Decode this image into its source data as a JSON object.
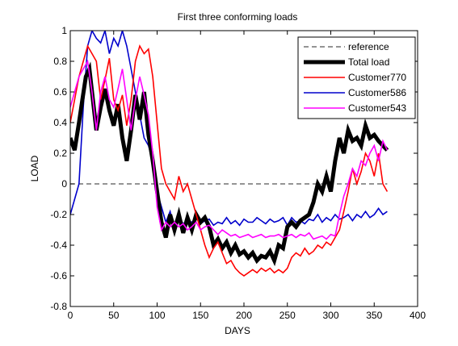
{
  "chart_data": {
    "type": "line",
    "title": "First three conforming loads",
    "xlabel": "DAYS",
    "ylabel": "LOAD",
    "xlim": [
      0,
      400
    ],
    "ylim": [
      -0.8,
      1
    ],
    "xticks": [
      0,
      50,
      100,
      150,
      200,
      250,
      300,
      350,
      400
    ],
    "yticks": [
      -0.8,
      -0.6,
      -0.4,
      -0.2,
      0,
      0.2,
      0.4,
      0.6,
      0.8,
      1
    ],
    "xtick_labels": [
      "0",
      "50",
      "100",
      "150",
      "200",
      "250",
      "300",
      "350",
      "400"
    ],
    "ytick_labels": [
      "-0.8",
      "-0.6",
      "-0.4",
      "-0.2",
      "0",
      "0.2",
      "0.4",
      "0.6",
      "0.8",
      "1"
    ],
    "grid": false,
    "legend_position": "top-right",
    "series": [
      {
        "name": "reference",
        "color": "#555555",
        "style": "dashed",
        "width": 1.2,
        "x": [
          0,
          365
        ],
        "y": [
          0,
          0
        ]
      },
      {
        "name": "Total load",
        "color": "#000000",
        "style": "solid",
        "width": 5,
        "x": [
          0,
          5,
          10,
          14,
          18,
          22,
          26,
          30,
          35,
          40,
          45,
          50,
          55,
          60,
          65,
          70,
          75,
          80,
          85,
          90,
          95,
          100,
          105,
          110,
          115,
          120,
          125,
          130,
          135,
          140,
          145,
          150,
          155,
          160,
          165,
          170,
          175,
          180,
          185,
          190,
          195,
          200,
          205,
          210,
          215,
          220,
          225,
          230,
          235,
          240,
          245,
          250,
          255,
          260,
          265,
          270,
          275,
          280,
          285,
          290,
          295,
          300,
          305,
          310,
          315,
          320,
          325,
          330,
          335,
          340,
          345,
          350,
          355,
          360,
          365
        ],
        "y": [
          0.3,
          0.22,
          0.4,
          0.55,
          0.7,
          0.75,
          0.55,
          0.35,
          0.5,
          0.62,
          0.48,
          0.38,
          0.52,
          0.3,
          0.15,
          0.35,
          0.58,
          0.42,
          0.6,
          0.32,
          0.15,
          -0.05,
          -0.25,
          -0.35,
          -0.2,
          -0.3,
          -0.2,
          -0.32,
          -0.22,
          -0.3,
          -0.2,
          -0.25,
          -0.22,
          -0.28,
          -0.4,
          -0.36,
          -0.42,
          -0.38,
          -0.45,
          -0.4,
          -0.46,
          -0.44,
          -0.48,
          -0.45,
          -0.5,
          -0.47,
          -0.48,
          -0.44,
          -0.5,
          -0.4,
          -0.42,
          -0.28,
          -0.25,
          -0.28,
          -0.24,
          -0.22,
          -0.2,
          -0.12,
          0.0,
          -0.05,
          0.05,
          -0.05,
          0.15,
          0.3,
          0.2,
          0.35,
          0.28,
          0.3,
          0.25,
          0.38,
          0.3,
          0.32,
          0.28,
          0.25,
          0.22
        ]
      },
      {
        "name": "Customer770",
        "color": "#ff0000",
        "style": "solid",
        "width": 1.6,
        "x": [
          0,
          5,
          10,
          15,
          20,
          25,
          30,
          35,
          40,
          45,
          50,
          55,
          60,
          65,
          70,
          75,
          80,
          85,
          90,
          95,
          100,
          105,
          110,
          115,
          120,
          125,
          130,
          135,
          140,
          145,
          150,
          155,
          160,
          165,
          170,
          175,
          180,
          185,
          190,
          195,
          200,
          205,
          210,
          215,
          220,
          225,
          230,
          235,
          240,
          245,
          250,
          255,
          260,
          265,
          270,
          275,
          280,
          285,
          290,
          295,
          300,
          305,
          310,
          315,
          320,
          325,
          330,
          335,
          340,
          345,
          350,
          355,
          360,
          365
        ],
        "y": [
          0.4,
          0.55,
          0.7,
          0.8,
          0.9,
          0.85,
          0.8,
          0.55,
          0.68,
          0.82,
          0.55,
          0.48,
          0.58,
          0.38,
          0.55,
          0.8,
          0.9,
          0.85,
          0.88,
          0.7,
          0.4,
          0.1,
          0.0,
          -0.05,
          -0.1,
          0.05,
          -0.05,
          0.0,
          -0.1,
          -0.2,
          -0.3,
          -0.4,
          -0.48,
          -0.42,
          -0.38,
          -0.45,
          -0.52,
          -0.5,
          -0.55,
          -0.58,
          -0.6,
          -0.58,
          -0.56,
          -0.58,
          -0.55,
          -0.57,
          -0.55,
          -0.58,
          -0.56,
          -0.58,
          -0.55,
          -0.48,
          -0.45,
          -0.47,
          -0.42,
          -0.46,
          -0.44,
          -0.4,
          -0.42,
          -0.38,
          -0.4,
          -0.35,
          -0.3,
          -0.18,
          -0.05,
          0.1,
          0.0,
          0.08,
          0.2,
          0.15,
          0.05,
          0.2,
          0.0,
          -0.05
        ]
      },
      {
        "name": "Customer586",
        "color": "#0000cc",
        "style": "solid",
        "width": 1.6,
        "x": [
          0,
          5,
          10,
          15,
          20,
          25,
          30,
          35,
          40,
          45,
          50,
          55,
          60,
          65,
          70,
          75,
          80,
          85,
          90,
          95,
          100,
          105,
          110,
          115,
          120,
          125,
          130,
          135,
          140,
          145,
          150,
          155,
          160,
          165,
          170,
          175,
          180,
          185,
          190,
          195,
          200,
          205,
          210,
          215,
          220,
          225,
          230,
          235,
          240,
          245,
          250,
          255,
          260,
          265,
          270,
          275,
          280,
          285,
          290,
          295,
          300,
          305,
          310,
          315,
          320,
          325,
          330,
          335,
          340,
          345,
          350,
          355,
          360,
          365
        ],
        "y": [
          -0.2,
          -0.1,
          0.0,
          0.5,
          0.9,
          1.0,
          0.95,
          0.92,
          1.0,
          0.85,
          0.95,
          0.9,
          1.0,
          0.9,
          0.75,
          0.6,
          0.45,
          0.3,
          0.25,
          0.15,
          -0.05,
          -0.15,
          -0.25,
          -0.18,
          -0.3,
          -0.22,
          -0.26,
          -0.24,
          -0.25,
          -0.22,
          -0.26,
          -0.24,
          -0.23,
          -0.27,
          -0.25,
          -0.26,
          -0.22,
          -0.26,
          -0.24,
          -0.27,
          -0.23,
          -0.25,
          -0.25,
          -0.22,
          -0.24,
          -0.26,
          -0.23,
          -0.25,
          -0.24,
          -0.22,
          -0.27,
          -0.22,
          -0.25,
          -0.24,
          -0.26,
          -0.23,
          -0.24,
          -0.2,
          -0.25,
          -0.22,
          -0.24,
          -0.2,
          -0.23,
          -0.22,
          -0.2,
          -0.24,
          -0.2,
          -0.22,
          -0.18,
          -0.22,
          -0.2,
          -0.16,
          -0.2,
          -0.18
        ]
      },
      {
        "name": "Customer543",
        "color": "#ff00ff",
        "style": "solid",
        "width": 1.6,
        "x": [
          0,
          5,
          10,
          15,
          20,
          25,
          30,
          35,
          40,
          45,
          50,
          55,
          60,
          65,
          70,
          75,
          80,
          85,
          90,
          95,
          100,
          105,
          110,
          115,
          120,
          125,
          130,
          135,
          140,
          145,
          150,
          155,
          160,
          165,
          170,
          175,
          180,
          185,
          190,
          195,
          200,
          205,
          210,
          215,
          220,
          225,
          230,
          235,
          240,
          245,
          250,
          255,
          260,
          265,
          270,
          275,
          280,
          285,
          290,
          295,
          300,
          305,
          310,
          315,
          320,
          325,
          330,
          335,
          340,
          345,
          350,
          355,
          360,
          365
        ],
        "y": [
          0.5,
          0.6,
          0.7,
          0.75,
          0.8,
          0.6,
          0.35,
          0.6,
          0.7,
          0.55,
          0.5,
          0.62,
          0.75,
          0.55,
          0.35,
          0.55,
          0.7,
          0.58,
          0.45,
          0.2,
          -0.15,
          -0.3,
          -0.25,
          -0.28,
          -0.25,
          -0.28,
          -0.26,
          -0.3,
          -0.28,
          -0.25,
          -0.3,
          -0.28,
          -0.27,
          -0.3,
          -0.33,
          -0.3,
          -0.32,
          -0.34,
          -0.33,
          -0.35,
          -0.34,
          -0.33,
          -0.35,
          -0.34,
          -0.33,
          -0.35,
          -0.34,
          -0.34,
          -0.33,
          -0.35,
          -0.34,
          -0.33,
          -0.35,
          -0.33,
          -0.34,
          -0.32,
          -0.36,
          -0.35,
          -0.34,
          -0.36,
          -0.33,
          -0.34,
          -0.2,
          -0.08,
          0.0,
          0.1,
          0.05,
          0.15,
          0.12,
          0.2,
          0.25,
          0.15,
          0.28,
          0.22
        ]
      }
    ]
  }
}
